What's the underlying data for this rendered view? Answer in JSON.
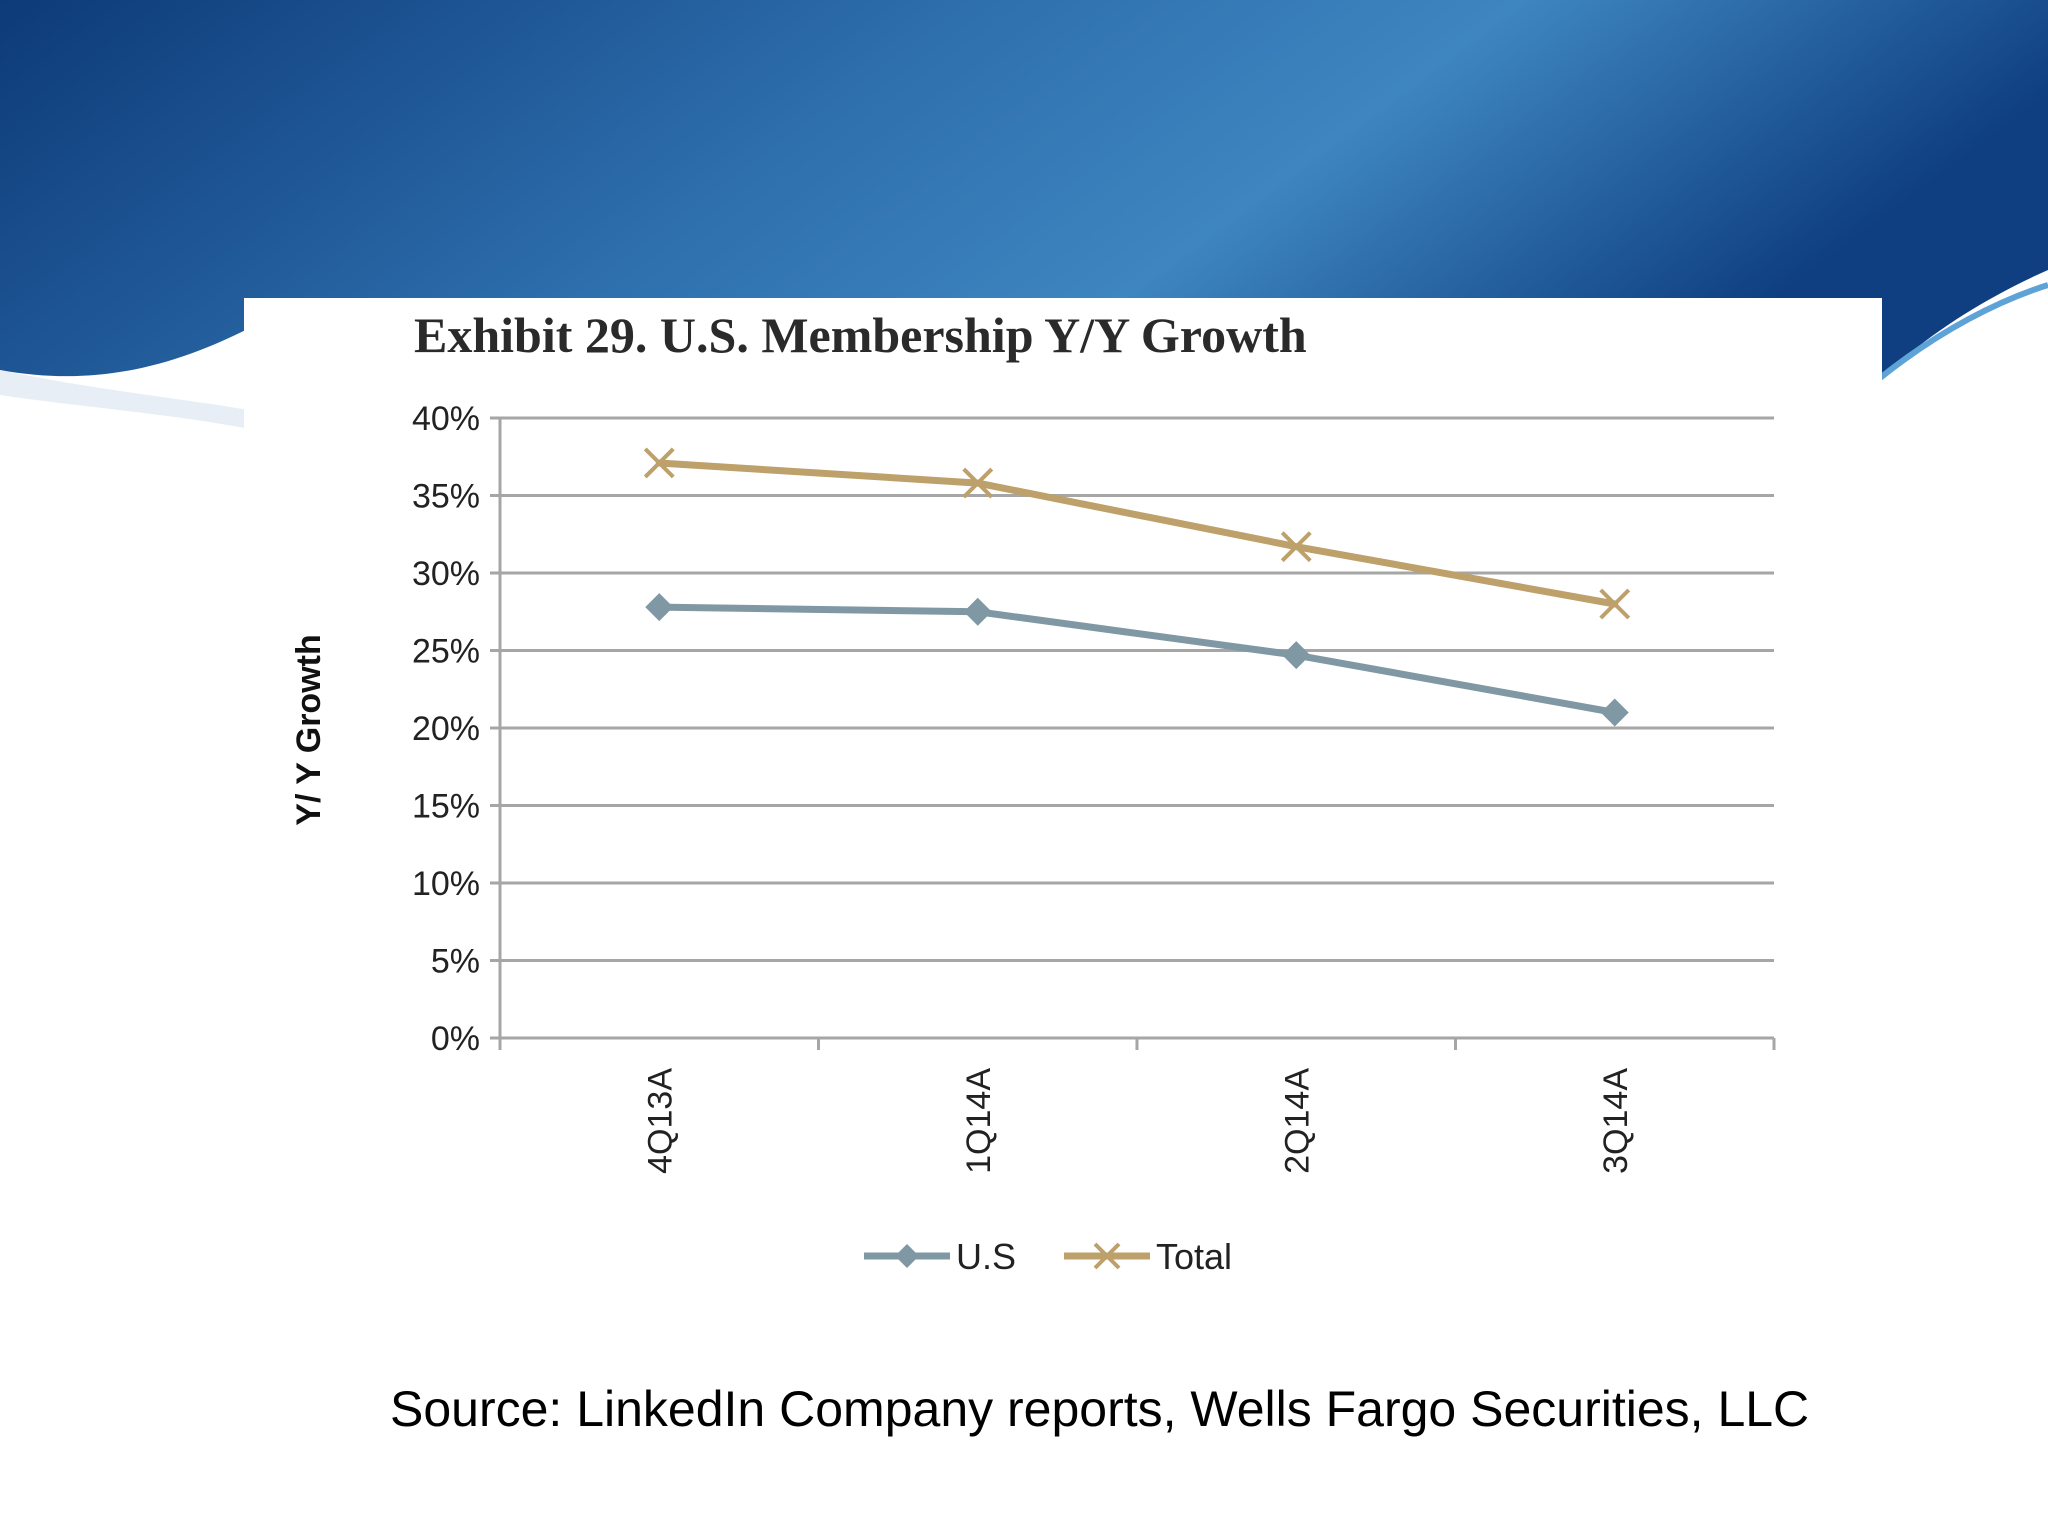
{
  "colors": {
    "us_series": "#7f98a3",
    "total_series": "#bda06a",
    "gridline": "#a6a6a6",
    "axis_text": "#222222",
    "banner_dark": "#0d3a78",
    "banner_light": "#3e86c0"
  },
  "source": "Source: LinkedIn Company reports, Wells Fargo Securities, LLC",
  "chart_data": {
    "type": "line",
    "title": "Exhibit 29. U.S. Membership Y/Y Growth",
    "xlabel": "",
    "ylabel": "Y/ Y Growth",
    "categories": [
      "4Q13A",
      "1Q14A",
      "2Q14A",
      "3Q14A"
    ],
    "series": [
      {
        "name": "U.S",
        "marker": "diamond",
        "values": [
          27.8,
          27.5,
          24.7,
          21.0
        ]
      },
      {
        "name": "Total",
        "marker": "x",
        "values": [
          37.1,
          35.8,
          31.7,
          28.0
        ]
      }
    ],
    "ylim": [
      0,
      40
    ],
    "yticks": [
      0,
      5,
      10,
      15,
      20,
      25,
      30,
      35,
      40
    ],
    "ytick_labels": [
      "0%",
      "5%",
      "10%",
      "15%",
      "20%",
      "25%",
      "30%",
      "35%",
      "40%"
    ],
    "grid": true,
    "legend_position": "bottom"
  }
}
